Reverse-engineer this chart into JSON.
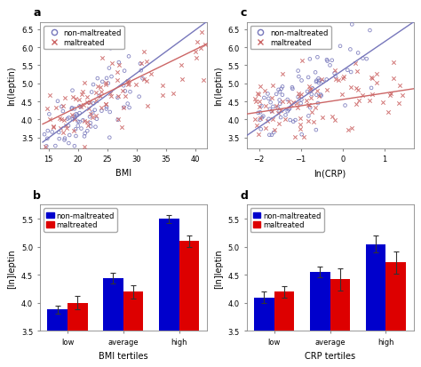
{
  "panel_a": {
    "xlabel": "BMI",
    "ylabel": "ln(leptin)",
    "xlim": [
      13.5,
      42
    ],
    "ylim": [
      3.2,
      6.7
    ],
    "xticks": [
      15,
      20,
      25,
      30,
      35,
      40
    ],
    "yticks": [
      3.5,
      4.0,
      4.5,
      5.0,
      5.5,
      6.0,
      6.5
    ],
    "blue_line": {
      "x0": 14.0,
      "x1": 42.0,
      "y0": 3.37,
      "y1": 6.71
    },
    "red_line": {
      "x0": 14.0,
      "x1": 42.0,
      "y0": 3.87,
      "y1": 6.09
    },
    "blue_color": "#7777bb",
    "red_color": "#cc6666",
    "legend": [
      "non-maltreated",
      "maltreated"
    ]
  },
  "panel_b": {
    "xlabel": "BMI tertiles",
    "ylabel": "[ln]leptin",
    "categories": [
      "low",
      "average",
      "high"
    ],
    "blue_vals": [
      3.88,
      4.44,
      5.5
    ],
    "red_vals": [
      4.0,
      4.2,
      5.1
    ],
    "blue_errs": [
      0.07,
      0.1,
      0.07
    ],
    "red_errs": [
      0.12,
      0.12,
      0.1
    ],
    "ylim": [
      3.5,
      5.75
    ],
    "yticks": [
      3.5,
      4.0,
      4.5,
      5.0,
      5.5
    ],
    "blue_color": "#0000cc",
    "red_color": "#dd0000",
    "legend": [
      "non-maltreated",
      "maltreated"
    ]
  },
  "panel_c": {
    "xlabel": "ln(CRP)",
    "ylabel": "ln(leptin)",
    "xlim": [
      -2.3,
      1.7
    ],
    "ylim": [
      3.2,
      6.7
    ],
    "xticks": [
      -2,
      -1,
      0,
      1
    ],
    "yticks": [
      3.5,
      4.0,
      4.5,
      5.0,
      5.5,
      6.0,
      6.5
    ],
    "blue_line": {
      "x0": -2.3,
      "x1": 1.7,
      "y0": 3.55,
      "y1": 6.7
    },
    "red_line": {
      "x0": -2.3,
      "x1": 1.7,
      "y0": 4.15,
      "y1": 4.85
    },
    "blue_color": "#7777bb",
    "red_color": "#cc6666",
    "legend": [
      "non-maltreated",
      "maltreated"
    ]
  },
  "panel_d": {
    "xlabel": "CRP tertiles",
    "ylabel": "[ln]leptin",
    "categories": [
      "low",
      "average",
      "high"
    ],
    "blue_vals": [
      4.1,
      4.55,
      5.05
    ],
    "red_vals": [
      4.2,
      4.42,
      4.72
    ],
    "blue_errs": [
      0.1,
      0.1,
      0.15
    ],
    "red_errs": [
      0.1,
      0.2,
      0.2
    ],
    "ylim": [
      3.5,
      5.75
    ],
    "yticks": [
      3.5,
      4.0,
      4.5,
      5.0,
      5.5
    ],
    "blue_color": "#0000cc",
    "red_color": "#dd0000",
    "legend": [
      "non-maltreated",
      "maltreated"
    ]
  },
  "background_color": "#ffffff",
  "axes_bg": "#f8f8f8"
}
